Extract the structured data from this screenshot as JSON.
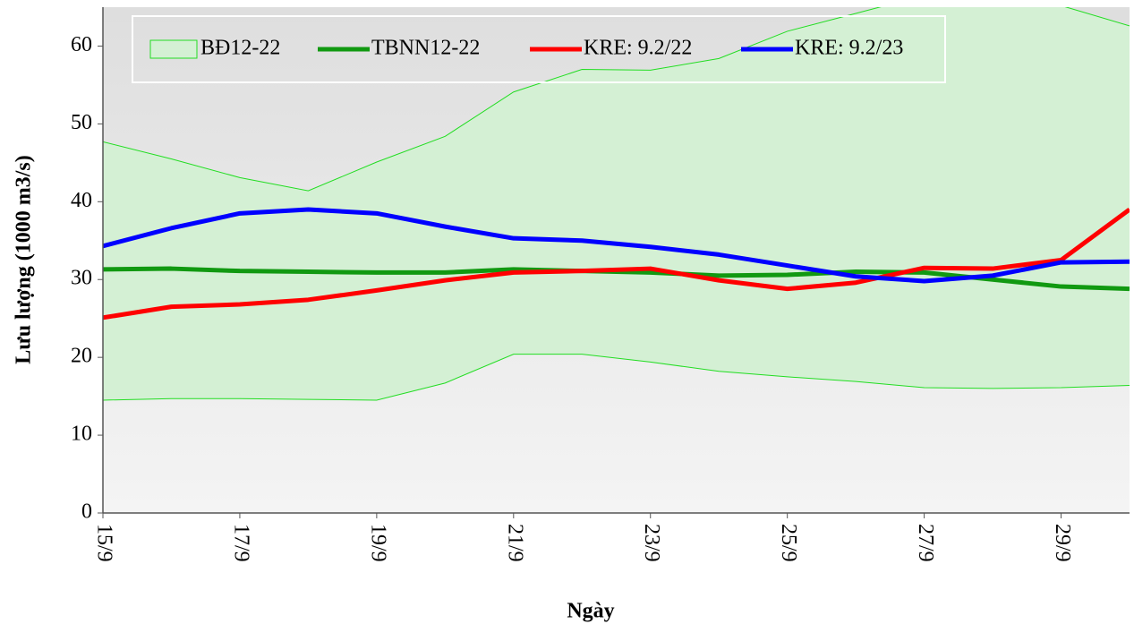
{
  "chart_data": {
    "type": "line",
    "y_label": "Lưu lượng (1000 m3/s)",
    "x_label": "Ngày",
    "categories": [
      "15/9",
      null,
      "17/9",
      null,
      "19/9",
      null,
      "21/9",
      null,
      "23/9",
      null,
      "25/9",
      null,
      "27/9",
      null,
      "29/9",
      null
    ],
    "band": {
      "name": "BĐ12-22",
      "color": "#22dd22",
      "fill": "#d4f0d4",
      "upper": [
        47.7,
        45.5,
        43.1,
        41.4,
        45.1,
        48.4,
        54.1,
        57.0,
        56.9,
        58.4,
        61.9,
        64.2,
        66.5,
        67.5,
        65.2,
        62.6
      ],
      "lower": [
        14.5,
        14.7,
        14.7,
        14.6,
        14.5,
        16.7,
        20.4,
        20.4,
        19.4,
        18.2,
        17.5,
        16.9,
        16.1,
        16.0,
        16.1,
        16.4
      ]
    },
    "series": [
      {
        "name": "TBNN12-22",
        "color": "#119911",
        "values": [
          31.3,
          31.4,
          31.1,
          31.0,
          30.9,
          30.9,
          31.3,
          31.1,
          30.9,
          30.5,
          30.6,
          31.0,
          30.9,
          30.0,
          29.1,
          28.8
        ]
      },
      {
        "name": "KRE: 9.2/22",
        "color": "#ff0000",
        "values": [
          25.1,
          26.5,
          26.8,
          27.4,
          28.6,
          29.9,
          30.9,
          31.1,
          31.4,
          29.9,
          28.8,
          29.6,
          31.5,
          31.4,
          32.5,
          39.0
        ]
      },
      {
        "name": "KRE: 9.2/23",
        "color": "#0000ff",
        "values": [
          34.3,
          36.6,
          38.5,
          39.0,
          38.5,
          36.8,
          35.3,
          35.0,
          34.2,
          33.2,
          31.8,
          30.4,
          29.8,
          30.5,
          32.2,
          32.3
        ]
      }
    ],
    "ylim": [
      0,
      65
    ],
    "yticks": [
      0,
      10,
      20,
      30,
      40,
      50,
      60
    ],
    "legend": "top"
  }
}
